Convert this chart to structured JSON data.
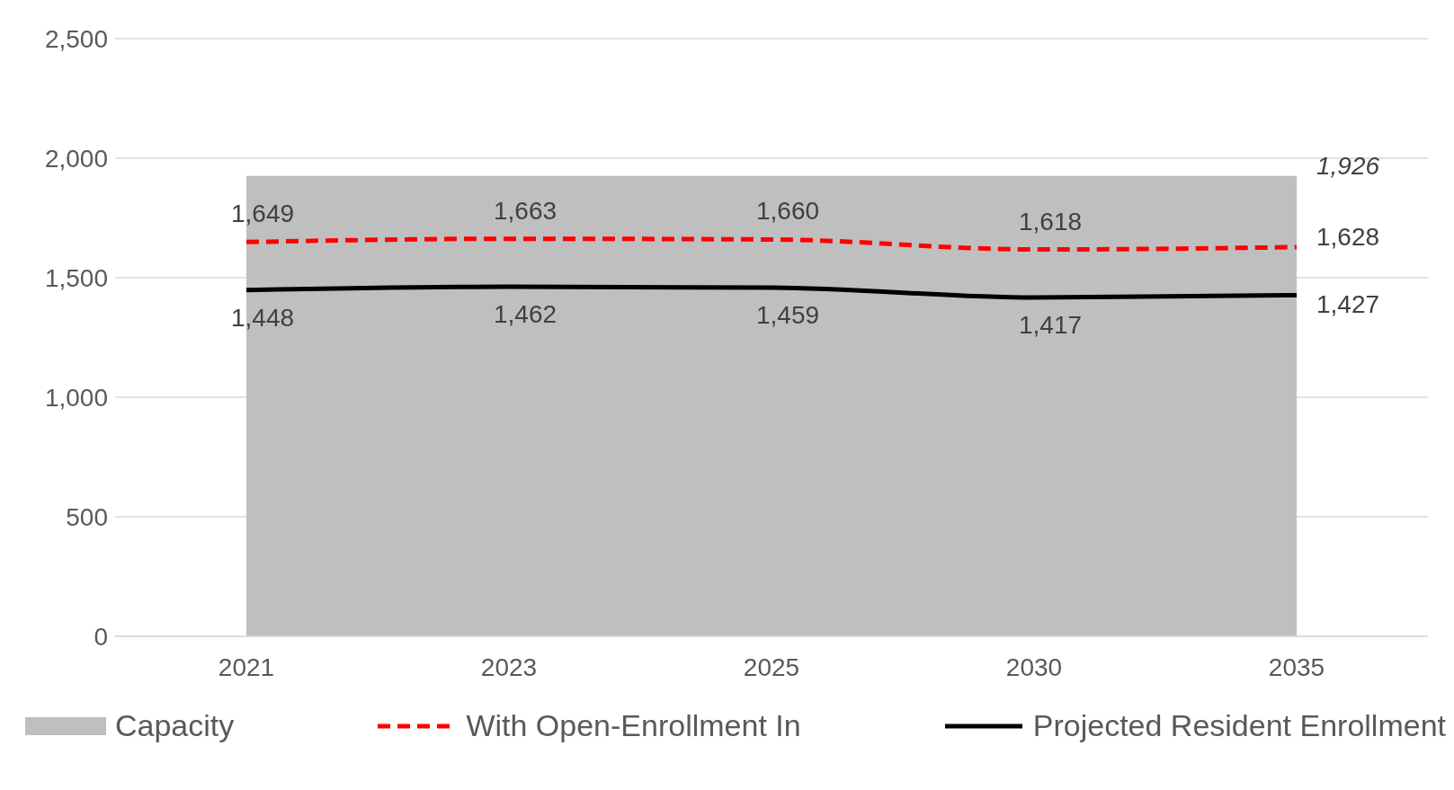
{
  "chart_data": {
    "type": "line",
    "categories": [
      "2021",
      "2023",
      "2025",
      "2030",
      "2035"
    ],
    "ylim": [
      0,
      2500
    ],
    "yticks": [
      0,
      500,
      {
        "value": 1000,
        "label": "1,000"
      },
      {
        "value": 1500,
        "label": "1,500"
      },
      {
        "value": 2000,
        "label": "2,000"
      },
      {
        "value": 2500,
        "label": "2,500"
      }
    ],
    "grid": "y",
    "legend": "bottom",
    "series": [
      {
        "name": "Capacity",
        "type": "area",
        "color": "#bfbfbf",
        "values": [
          1926,
          1926,
          1926,
          1926,
          1926
        ],
        "value_labels": [
          null,
          null,
          null,
          null,
          "1,926"
        ]
      },
      {
        "name": "With Open-Enrollment In",
        "line_style": "dashed",
        "color": "#ff0000",
        "values": [
          1649,
          1663,
          1660,
          1618,
          1628
        ],
        "value_labels": [
          "1,649",
          "1,663",
          "1,660",
          "1,618",
          "1,628"
        ]
      },
      {
        "name": "Projected Resident Enrollment",
        "line_style": "solid",
        "color": "#000000",
        "values": [
          1448,
          1462,
          1459,
          1417,
          1427
        ],
        "value_labels": [
          "1,448",
          "1,462",
          "1,459",
          "1,417",
          "1,427"
        ]
      }
    ]
  }
}
